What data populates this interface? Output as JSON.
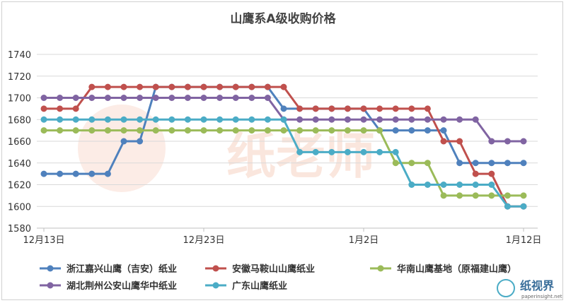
{
  "chart_data": {
    "type": "line",
    "title": "山鹰系A级收购价格",
    "xlabel": "",
    "ylabel": "",
    "ylim": [
      1580,
      1740
    ],
    "yticks": [
      1580,
      1600,
      1620,
      1640,
      1660,
      1680,
      1700,
      1720,
      1740
    ],
    "grid": "horizontal",
    "legend_position": "bottom",
    "x": [
      "12/13",
      "12/14",
      "12/15",
      "12/16",
      "12/17",
      "12/18",
      "12/19",
      "12/20",
      "12/21",
      "12/22",
      "12/23",
      "12/24",
      "12/25",
      "12/26",
      "12/27",
      "12/28",
      "12/29",
      "12/30",
      "12/31",
      "1/1",
      "1/2",
      "1/3",
      "1/4",
      "1/5",
      "1/6",
      "1/7",
      "1/8",
      "1/9",
      "1/10",
      "1/11",
      "1/12"
    ],
    "xtick_labels": [
      {
        "index": 0,
        "label": "12月13日"
      },
      {
        "index": 10,
        "label": "12月23日"
      },
      {
        "index": 20,
        "label": "1月2日"
      },
      {
        "index": 30,
        "label": "1月12日"
      }
    ],
    "series": [
      {
        "name": "浙江嘉兴山鹰（吉安）纸业",
        "color": "#4f81bd",
        "values": [
          1630,
          1630,
          1630,
          1630,
          1630,
          1660,
          1660,
          1710,
          1710,
          1710,
          1710,
          1710,
          1710,
          1710,
          1710,
          1690,
          1690,
          1690,
          1690,
          1690,
          1690,
          1670,
          1670,
          1670,
          1670,
          1670,
          1640,
          1640,
          1640,
          1640,
          1640
        ]
      },
      {
        "name": "安徽马鞍山山鹰纸业",
        "color": "#c0504d",
        "values": [
          1690,
          1690,
          1690,
          1710,
          1710,
          1710,
          1710,
          1710,
          1710,
          1710,
          1710,
          1710,
          1710,
          1710,
          1710,
          1710,
          1690,
          1690,
          1690,
          1690,
          1690,
          1690,
          1690,
          1690,
          1690,
          1660,
          1660,
          1630,
          1630,
          1600,
          1600
        ]
      },
      {
        "name": "华南山鹰基地（原福建山鹰）",
        "color": "#9bbb59",
        "values": [
          1670,
          1670,
          1670,
          1670,
          1670,
          1670,
          1670,
          1670,
          1670,
          1670,
          1670,
          1670,
          1670,
          1670,
          1670,
          1670,
          1670,
          1670,
          1670,
          1670,
          1670,
          1670,
          1640,
          1640,
          1640,
          1610,
          1610,
          1610,
          1610,
          1610,
          1610
        ]
      },
      {
        "name": "湖北荆州公安山鹰华中纸业",
        "color": "#8064a2",
        "values": [
          1700,
          1700,
          1700,
          1700,
          1700,
          1700,
          1700,
          1700,
          1700,
          1700,
          1700,
          1700,
          1700,
          1700,
          1700,
          1680,
          1680,
          1680,
          1680,
          1680,
          1680,
          1680,
          1680,
          1680,
          1680,
          1680,
          1680,
          1680,
          1660,
          1660,
          1660
        ]
      },
      {
        "name": "广东山鹰纸业",
        "color": "#4bacc6",
        "values": [
          1680,
          1680,
          1680,
          1680,
          1680,
          1680,
          1680,
          1680,
          1680,
          1680,
          1680,
          1680,
          1680,
          1680,
          1680,
          1680,
          1650,
          1650,
          1650,
          1650,
          1650,
          1650,
          1650,
          1620,
          1620,
          1620,
          1620,
          1620,
          1620,
          1600,
          1600
        ]
      }
    ]
  },
  "watermark": {
    "text": "纸老师",
    "logo_text": "纸视界",
    "logo_subtext": "paperinsight.net"
  }
}
